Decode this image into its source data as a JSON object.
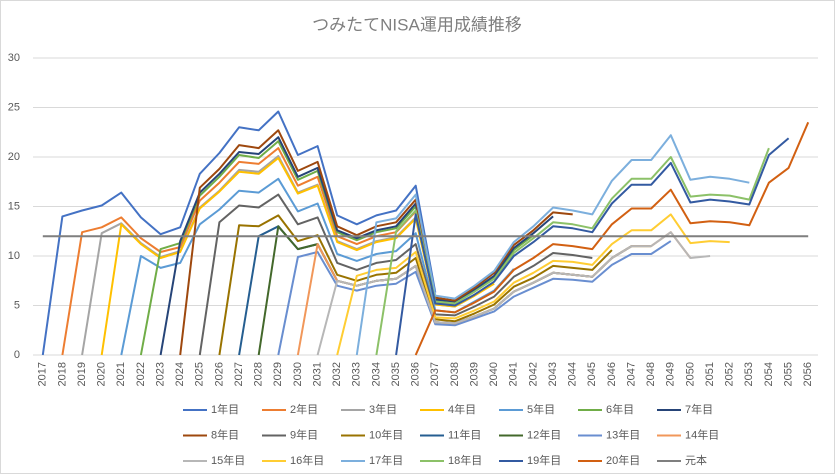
{
  "chart_data": {
    "type": "line",
    "title": "つみたてNISA運用成績推移",
    "categories": [
      "2017",
      "2018",
      "2019",
      "2020",
      "2021",
      "2022",
      "2023",
      "2024",
      "2025",
      "2026",
      "2027",
      "2028",
      "2029",
      "2030",
      "2031",
      "2032",
      "2033",
      "2034",
      "2035",
      "2036",
      "2037",
      "2038",
      "2039",
      "2040",
      "2041",
      "2042",
      "2043",
      "2044",
      "2045",
      "2046",
      "2047",
      "2048",
      "2049",
      "2050",
      "2051",
      "2052",
      "2053",
      "2054",
      "2055",
      "2056"
    ],
    "ylim": [
      0,
      30
    ],
    "yticks": [
      0,
      5,
      10,
      15,
      20,
      25,
      30
    ],
    "grid": true,
    "legend": "bottom",
    "series": [
      {
        "name": "1年目",
        "color": "#4472c4",
        "values": [
          0,
          14.0,
          14.6,
          15.1,
          16.4,
          13.9,
          12.2,
          12.9,
          18.3,
          20.4,
          23.0,
          22.7,
          24.6,
          20.2,
          21.1,
          14.1,
          13.2,
          14.1,
          14.6,
          17.1,
          6.3,
          null,
          null,
          null,
          null,
          null,
          null,
          null,
          null,
          null,
          null,
          null,
          null,
          null,
          null,
          null,
          null,
          null,
          null,
          null
        ]
      },
      {
        "name": "2年目",
        "color": "#ed7d31",
        "values": [
          null,
          0,
          12.4,
          12.9,
          13.9,
          11.8,
          10.4,
          10.9,
          15.6,
          17.4,
          19.5,
          19.3,
          20.9,
          17.1,
          18.0,
          12.0,
          11.2,
          12.0,
          12.4,
          14.5,
          5.4,
          5.1,
          null,
          null,
          null,
          null,
          null,
          null,
          null,
          null,
          null,
          null,
          null,
          null,
          null,
          null,
          null,
          null,
          null,
          null
        ]
      },
      {
        "name": "3年目",
        "color": "#a5a5a5",
        "values": [
          null,
          null,
          0,
          12.3,
          13.3,
          11.3,
          9.9,
          10.5,
          14.9,
          16.6,
          18.7,
          18.5,
          20.1,
          16.4,
          17.2,
          11.5,
          10.7,
          11.5,
          11.9,
          13.9,
          5.1,
          4.9,
          6.0,
          null,
          null,
          null,
          null,
          null,
          null,
          null,
          null,
          null,
          null,
          null,
          null,
          null,
          null,
          null,
          null,
          null
        ]
      },
      {
        "name": "4年目",
        "color": "#ffc000",
        "values": [
          null,
          null,
          null,
          0,
          13.2,
          11.2,
          9.8,
          10.4,
          14.8,
          16.5,
          18.5,
          18.3,
          19.9,
          16.3,
          17.1,
          11.4,
          10.6,
          11.4,
          11.8,
          13.8,
          5.1,
          4.9,
          6.0,
          7.2,
          null,
          null,
          null,
          null,
          null,
          null,
          null,
          null,
          null,
          null,
          null,
          null,
          null,
          null,
          null,
          null
        ]
      },
      {
        "name": "5年目",
        "color": "#5b9bd5",
        "values": [
          null,
          null,
          null,
          null,
          0,
          10.0,
          8.8,
          9.3,
          13.2,
          14.7,
          16.6,
          16.4,
          17.8,
          14.5,
          15.3,
          10.2,
          9.5,
          10.2,
          10.5,
          12.3,
          4.5,
          4.3,
          5.4,
          6.5,
          8.7,
          null,
          null,
          null,
          null,
          null,
          null,
          null,
          null,
          null,
          null,
          null,
          null,
          null,
          null,
          null
        ]
      },
      {
        "name": "6年目",
        "color": "#70ad47",
        "values": [
          null,
          null,
          null,
          null,
          null,
          0,
          10.7,
          11.3,
          16.1,
          18.0,
          20.2,
          19.9,
          21.6,
          17.7,
          18.6,
          12.4,
          11.6,
          12.4,
          12.8,
          15.0,
          5.5,
          5.3,
          6.5,
          7.9,
          10.6,
          12.1,
          null,
          null,
          null,
          null,
          null,
          null,
          null,
          null,
          null,
          null,
          null,
          null,
          null,
          null
        ]
      },
      {
        "name": "7年目",
        "color": "#264478",
        "values": [
          null,
          null,
          null,
          null,
          null,
          null,
          0,
          11.5,
          16.4,
          18.3,
          20.5,
          20.3,
          22.0,
          18.0,
          18.9,
          12.6,
          11.8,
          12.6,
          13.0,
          15.3,
          5.6,
          5.4,
          6.6,
          8.0,
          10.8,
          12.3,
          14.0,
          null,
          null,
          null,
          null,
          null,
          null,
          null,
          null,
          null,
          null,
          null,
          null,
          null
        ]
      },
      {
        "name": "8年目",
        "color": "#9e480e",
        "values": [
          null,
          null,
          null,
          null,
          null,
          null,
          null,
          0,
          16.9,
          18.8,
          21.2,
          20.9,
          22.7,
          18.6,
          19.5,
          13.0,
          12.1,
          13.0,
          13.4,
          15.7,
          5.8,
          5.5,
          6.8,
          8.3,
          11.1,
          12.6,
          14.4,
          14.2,
          null,
          null,
          null,
          null,
          null,
          null,
          null,
          null,
          null,
          null,
          null,
          null
        ]
      },
      {
        "name": "9年目",
        "color": "#636363",
        "values": [
          null,
          null,
          null,
          null,
          null,
          null,
          null,
          null,
          0,
          13.4,
          15.1,
          14.9,
          16.2,
          13.2,
          13.9,
          9.3,
          8.6,
          9.3,
          9.6,
          11.2,
          4.1,
          4.0,
          4.9,
          5.9,
          7.9,
          9.0,
          10.3,
          10.1,
          9.8,
          null,
          null,
          null,
          null,
          null,
          null,
          null,
          null,
          null,
          null,
          null
        ]
      },
      {
        "name": "10年目",
        "color": "#997300",
        "values": [
          null,
          null,
          null,
          null,
          null,
          null,
          null,
          null,
          null,
          0,
          13.1,
          13.0,
          14.1,
          11.5,
          12.1,
          8.1,
          7.5,
          8.1,
          8.3,
          9.8,
          3.6,
          3.4,
          4.2,
          5.1,
          6.9,
          7.8,
          9.0,
          8.8,
          8.6,
          10.6,
          null,
          null,
          null,
          null,
          null,
          null,
          null,
          null,
          null,
          null
        ]
      },
      {
        "name": "11年目",
        "color": "#255e91",
        "values": [
          null,
          null,
          null,
          null,
          null,
          null,
          null,
          null,
          null,
          null,
          0,
          12.0,
          13.0,
          10.7,
          11.2,
          7.5,
          7.0,
          7.5,
          7.7,
          9.0,
          3.3,
          3.2,
          3.9,
          4.7,
          6.4,
          7.3,
          8.3,
          8.1,
          7.9,
          9.8,
          11.0,
          null,
          null,
          null,
          null,
          null,
          null,
          null,
          null,
          null
        ]
      },
      {
        "name": "12年目",
        "color": "#43682b",
        "values": [
          null,
          null,
          null,
          null,
          null,
          null,
          null,
          null,
          null,
          null,
          null,
          0,
          13.0,
          10.7,
          11.2,
          7.5,
          7.0,
          7.5,
          7.7,
          9.0,
          3.3,
          3.2,
          3.9,
          4.7,
          6.4,
          7.3,
          8.3,
          8.1,
          7.9,
          9.8,
          11.0,
          11.0,
          null,
          null,
          null,
          null,
          null,
          null,
          null,
          null
        ]
      },
      {
        "name": "13年目",
        "color": "#698ed0",
        "values": [
          null,
          null,
          null,
          null,
          null,
          null,
          null,
          null,
          null,
          null,
          null,
          null,
          0,
          9.9,
          10.4,
          7.0,
          6.5,
          7.0,
          7.2,
          8.4,
          3.1,
          3.0,
          3.7,
          4.4,
          5.9,
          6.8,
          7.7,
          7.6,
          7.4,
          9.1,
          10.2,
          10.2,
          11.5,
          null,
          null,
          null,
          null,
          null,
          null,
          null
        ]
      },
      {
        "name": "14年目",
        "color": "#f1975a",
        "values": [
          null,
          null,
          null,
          null,
          null,
          null,
          null,
          null,
          null,
          null,
          null,
          null,
          null,
          0,
          11.2,
          7.5,
          7.0,
          7.5,
          7.7,
          9.0,
          3.3,
          3.2,
          3.9,
          4.7,
          6.4,
          7.3,
          8.3,
          8.1,
          7.9,
          9.8,
          11.0,
          11.0,
          12.4,
          9.8,
          null,
          null,
          null,
          null,
          null,
          null
        ]
      },
      {
        "name": "15年目",
        "color": "#b7b7b7",
        "values": [
          null,
          null,
          null,
          null,
          null,
          null,
          null,
          null,
          null,
          null,
          null,
          null,
          null,
          null,
          0,
          7.5,
          7.0,
          7.5,
          7.7,
          9.0,
          3.3,
          3.2,
          3.9,
          4.7,
          6.4,
          7.3,
          8.3,
          8.1,
          7.9,
          9.8,
          11.0,
          11.0,
          12.4,
          9.8,
          10.0,
          null,
          null,
          null,
          null,
          null
        ]
      },
      {
        "name": "16年目",
        "color": "#ffcd33",
        "values": [
          null,
          null,
          null,
          null,
          null,
          null,
          null,
          null,
          null,
          null,
          null,
          null,
          null,
          null,
          null,
          0,
          8.0,
          8.6,
          8.8,
          10.4,
          3.8,
          3.7,
          4.5,
          5.4,
          7.3,
          8.3,
          9.5,
          9.4,
          9.1,
          11.2,
          12.6,
          12.6,
          14.2,
          11.3,
          11.5,
          11.4,
          null,
          null,
          null,
          null
        ]
      },
      {
        "name": "17年目",
        "color": "#7cafdd",
        "values": [
          null,
          null,
          null,
          null,
          null,
          null,
          null,
          null,
          null,
          null,
          null,
          null,
          null,
          null,
          null,
          null,
          0,
          13.4,
          13.8,
          16.2,
          6.0,
          5.7,
          7.0,
          8.5,
          11.4,
          13.0,
          14.9,
          14.6,
          14.2,
          17.6,
          19.7,
          19.7,
          22.2,
          17.7,
          18.0,
          17.8,
          17.4,
          null,
          null,
          null
        ]
      },
      {
        "name": "18年目",
        "color": "#8cc168",
        "values": [
          null,
          null,
          null,
          null,
          null,
          null,
          null,
          null,
          null,
          null,
          null,
          null,
          null,
          null,
          null,
          null,
          null,
          0,
          12.5,
          14.6,
          5.4,
          5.2,
          6.4,
          7.7,
          10.3,
          11.8,
          13.4,
          13.2,
          12.8,
          15.8,
          17.8,
          17.8,
          20.0,
          16.0,
          16.2,
          16.1,
          15.7,
          20.9,
          null,
          null
        ]
      },
      {
        "name": "19年目",
        "color": "#335aa1",
        "values": [
          null,
          null,
          null,
          null,
          null,
          null,
          null,
          null,
          null,
          null,
          null,
          null,
          null,
          null,
          null,
          null,
          null,
          null,
          0,
          14.2,
          5.2,
          5.0,
          6.1,
          7.4,
          10.0,
          11.4,
          13.0,
          12.8,
          12.4,
          15.3,
          17.2,
          17.2,
          19.4,
          15.4,
          15.7,
          15.5,
          15.2,
          20.2,
          21.9,
          null
        ]
      },
      {
        "name": "20年目",
        "color": "#d26012",
        "values": [
          null,
          null,
          null,
          null,
          null,
          null,
          null,
          null,
          null,
          null,
          null,
          null,
          null,
          null,
          null,
          null,
          null,
          null,
          null,
          0,
          4.5,
          4.3,
          5.3,
          6.4,
          8.6,
          9.8,
          11.2,
          11.0,
          10.7,
          13.2,
          14.8,
          14.8,
          16.7,
          13.3,
          13.5,
          13.4,
          13.1,
          17.4,
          18.9,
          23.5
        ]
      },
      {
        "name": "元本",
        "color": "#7f7f7f",
        "values": [
          12,
          12,
          12,
          12,
          12,
          12,
          12,
          12,
          12,
          12,
          12,
          12,
          12,
          12,
          12,
          12,
          12,
          12,
          12,
          12,
          12,
          12,
          12,
          12,
          12,
          12,
          12,
          12,
          12,
          12,
          12,
          12,
          12,
          12,
          12,
          12,
          12,
          12,
          12,
          12
        ]
      }
    ]
  }
}
